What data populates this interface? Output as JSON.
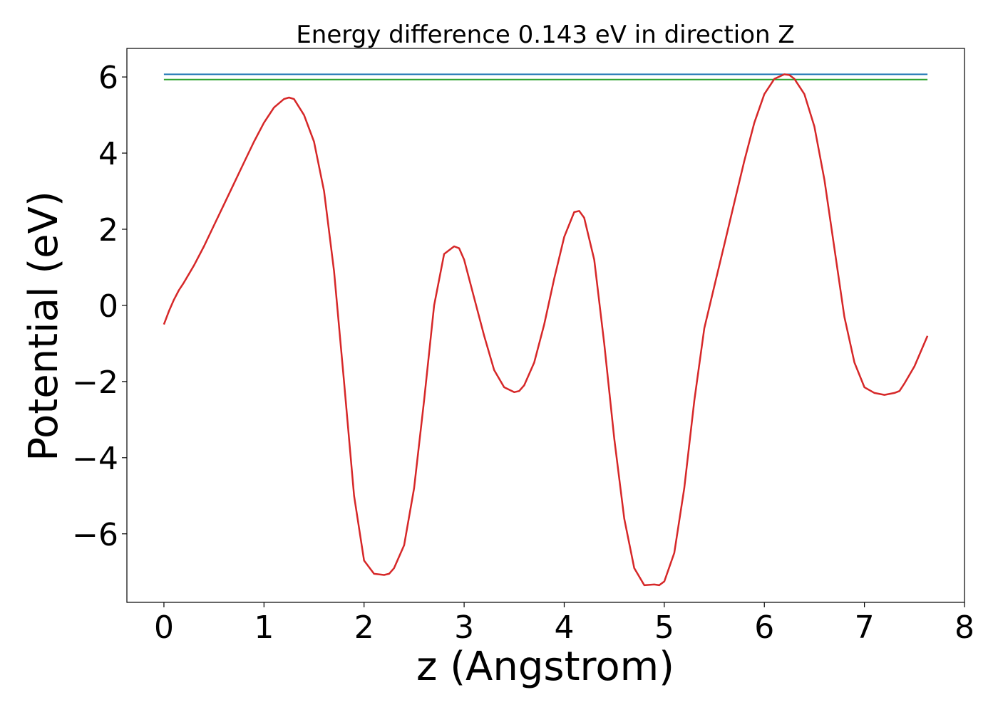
{
  "chart_data": {
    "type": "line",
    "title": "Energy difference 0.143 eV in direction Z",
    "xlabel": "z (Angstrom)",
    "ylabel": "Potential (eV)",
    "xlim": [
      -0.37,
      8.0
    ],
    "ylim": [
      -7.8,
      6.75
    ],
    "xticks": [
      0,
      1,
      2,
      3,
      4,
      5,
      6,
      7,
      8
    ],
    "xtick_labels": [
      "0",
      "1",
      "2",
      "3",
      "4",
      "5",
      "6",
      "7",
      "8"
    ],
    "yticks": [
      -6,
      -4,
      -2,
      0,
      2,
      4,
      6
    ],
    "ytick_labels": [
      "−6",
      "−4",
      "−2",
      "0",
      "2",
      "4",
      "6"
    ],
    "grid": false,
    "series": [
      {
        "color": "#1f77b4",
        "x": [
          0,
          7.63
        ],
        "y": [
          6.07,
          6.07
        ]
      },
      {
        "color": "#2ca02c",
        "x": [
          0,
          7.63
        ],
        "y": [
          5.93,
          5.93
        ]
      },
      {
        "color": "#d62728",
        "x": [
          0,
          0.05,
          0.1,
          0.15,
          0.2,
          0.3,
          0.4,
          0.5,
          0.6,
          0.7,
          0.8,
          0.9,
          1.0,
          1.1,
          1.2,
          1.25,
          1.3,
          1.4,
          1.5,
          1.6,
          1.7,
          1.8,
          1.9,
          2.0,
          2.1,
          2.2,
          2.25,
          2.3,
          2.4,
          2.5,
          2.6,
          2.7,
          2.8,
          2.9,
          2.95,
          3.0,
          3.1,
          3.2,
          3.3,
          3.4,
          3.5,
          3.55,
          3.6,
          3.7,
          3.8,
          3.9,
          4.0,
          4.1,
          4.15,
          4.2,
          4.3,
          4.4,
          4.5,
          4.6,
          4.7,
          4.8,
          4.9,
          4.95,
          5.0,
          5.1,
          5.2,
          5.3,
          5.4,
          5.5,
          5.6,
          5.7,
          5.8,
          5.9,
          6.0,
          6.1,
          6.2,
          6.25,
          6.3,
          6.4,
          6.5,
          6.6,
          6.7,
          6.8,
          6.9,
          7.0,
          7.1,
          7.2,
          7.3,
          7.35,
          7.4,
          7.5,
          7.63
        ],
        "y": [
          -0.5,
          -0.15,
          0.15,
          0.4,
          0.6,
          1.05,
          1.55,
          2.1,
          2.65,
          3.2,
          3.75,
          4.3,
          4.8,
          5.2,
          5.42,
          5.46,
          5.42,
          5.0,
          4.3,
          3.0,
          0.9,
          -2.0,
          -5.0,
          -6.7,
          -7.05,
          -7.08,
          -7.05,
          -6.9,
          -6.3,
          -4.8,
          -2.5,
          0.0,
          1.35,
          1.55,
          1.5,
          1.2,
          0.2,
          -0.8,
          -1.7,
          -2.15,
          -2.28,
          -2.25,
          -2.1,
          -1.5,
          -0.5,
          0.7,
          1.8,
          2.45,
          2.48,
          2.3,
          1.2,
          -1.0,
          -3.5,
          -5.6,
          -6.9,
          -7.35,
          -7.33,
          -7.35,
          -7.25,
          -6.5,
          -4.8,
          -2.5,
          -0.6,
          0.5,
          1.6,
          2.7,
          3.8,
          4.8,
          5.55,
          5.95,
          6.07,
          6.05,
          5.95,
          5.55,
          4.7,
          3.3,
          1.5,
          -0.3,
          -1.5,
          -2.15,
          -2.3,
          -2.35,
          -2.3,
          -2.25,
          -2.05,
          -1.6,
          -0.8
        ]
      }
    ]
  }
}
